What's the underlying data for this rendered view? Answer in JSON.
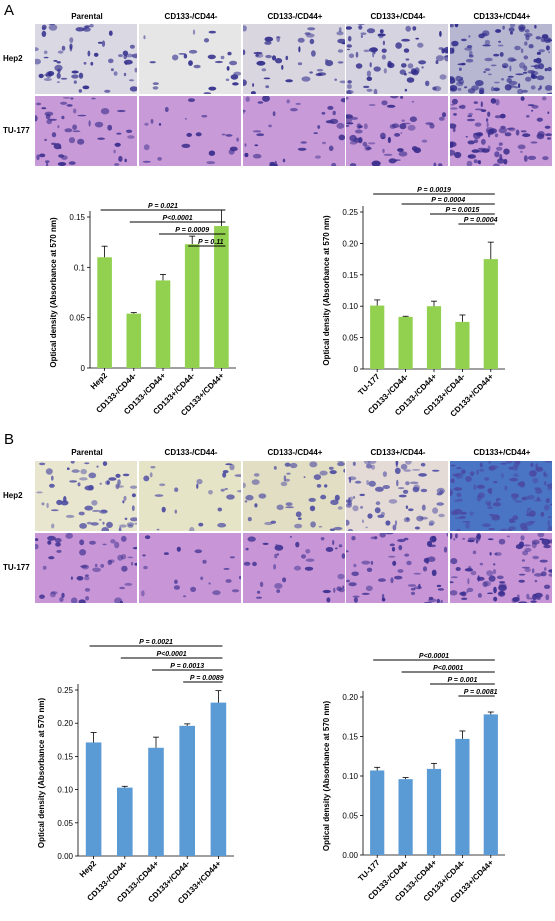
{
  "panels": [
    {
      "letter": "A",
      "columns": [
        "Parental",
        "CD133-/CD44-",
        "CD133-/CD44+",
        "CD133+/CD44-",
        "CD133+/CD44+"
      ],
      "rows": [
        "Hep2",
        "TU-177"
      ],
      "colors": {
        "hep2_bg": [
          "#dad8e3",
          "#e6e6e6",
          "#d9d6e0",
          "#d6d3e0",
          "#b8b7d2"
        ],
        "hep2_dot": "#2e2a8a",
        "tu_bg": "#c89ad8",
        "tu_dot": "#3a2d8c"
      }
    },
    {
      "letter": "B",
      "columns": [
        "Parental",
        "CD133-/CD44-",
        "CD133-/CD44+",
        "CD133+/CD44-",
        "CD133+/CD44+"
      ],
      "rows": [
        "Hep2",
        "TU-177"
      ],
      "colors": {
        "hep2_bg": [
          "#e9e6d0",
          "#e6e4c6",
          "#e2dec4",
          "#e4dad6",
          "#4a74c4"
        ],
        "hep2_dot": "#4b4aa2",
        "tu_bg": "#c896d6",
        "tu_dot": "#3b2f90"
      }
    }
  ],
  "chart_data": [
    {
      "type": "bar",
      "bar_color": "#92d050",
      "ylabel": "Optical density (Absorbance at 570 nm)",
      "categories": [
        "Hep2",
        "CD133-/CD44-",
        "CD133-/CD44+",
        "CD133+/CD44-",
        "CD133+/CD44+"
      ],
      "values": [
        0.11,
        0.054,
        0.087,
        0.123,
        0.141
      ],
      "errors": [
        0.011,
        0.001,
        0.006,
        0.008,
        0.016
      ],
      "ylim": [
        0,
        0.15
      ],
      "yticks": [
        "0",
        "0.05",
        "0.1",
        "0.15"
      ],
      "comparisons": [
        {
          "from": 0,
          "to": 4,
          "label": "P = 0.021"
        },
        {
          "from": 1,
          "to": 4,
          "label": "P<0.0001"
        },
        {
          "from": 2,
          "to": 4,
          "label": "P = 0.0009"
        },
        {
          "from": 3,
          "to": 4,
          "label": "P = 0.11"
        }
      ]
    },
    {
      "type": "bar",
      "bar_color": "#92d050",
      "ylabel": "Optical density (Absorbance at 570 nm)",
      "categories": [
        "TU-177",
        "CD133-/CD44-",
        "CD133-/CD44+",
        "CD133+/CD44-",
        "CD133+/CD44+"
      ],
      "values": [
        0.101,
        0.083,
        0.1,
        0.075,
        0.175
      ],
      "errors": [
        0.009,
        0.001,
        0.008,
        0.011,
        0.027
      ],
      "ylim": [
        0,
        0.25
      ],
      "yticks": [
        "0",
        "0.05",
        "0.10",
        "0.15",
        "0.20",
        "0.25"
      ],
      "comparisons": [
        {
          "from": 0,
          "to": 4,
          "label": "P = 0.0019"
        },
        {
          "from": 1,
          "to": 4,
          "label": "P = 0.0004"
        },
        {
          "from": 2,
          "to": 4,
          "label": "P = 0.0015"
        },
        {
          "from": 3,
          "to": 4,
          "label": "P = 0.0004"
        }
      ]
    },
    {
      "type": "bar",
      "bar_color": "#5b9bd5",
      "ylabel": "Optical density (Absorbance at 570 nm)",
      "categories": [
        "Hep2",
        "CD133-/CD44-",
        "CD133-/CD44+",
        "CD133+/CD44-",
        "CD133+/CD44+"
      ],
      "values": [
        0.171,
        0.103,
        0.163,
        0.196,
        0.231
      ],
      "errors": [
        0.015,
        0.002,
        0.016,
        0.003,
        0.018
      ],
      "ylim": [
        0,
        0.25
      ],
      "yticks": [
        "0.00",
        "0.05",
        "0.10",
        "0.15",
        "0.20",
        "0.25"
      ],
      "comparisons": [
        {
          "from": 0,
          "to": 4,
          "label": "P = 0.0021"
        },
        {
          "from": 1,
          "to": 4,
          "label": "P<0.0001"
        },
        {
          "from": 2,
          "to": 4,
          "label": "P = 0.0013"
        },
        {
          "from": 3,
          "to": 4,
          "label": "P = 0.0089"
        }
      ]
    },
    {
      "type": "bar",
      "bar_color": "#5b9bd5",
      "ylabel": "Optical density (Absorbance at 570 nm)",
      "categories": [
        "TU-177",
        "CD133-/CD44-",
        "CD133-/CD44+",
        "CD133+/CD44-",
        "CD133+/CD44+"
      ],
      "values": [
        0.107,
        0.096,
        0.109,
        0.147,
        0.178
      ],
      "errors": [
        0.004,
        0.002,
        0.007,
        0.01,
        0.003
      ],
      "ylim": [
        0,
        0.2
      ],
      "yticks": [
        "0.00",
        "0.05",
        "0.10",
        "0.15",
        "0.20"
      ],
      "comparisons": [
        {
          "from": 0,
          "to": 4,
          "label": "P<0.0001"
        },
        {
          "from": 1,
          "to": 4,
          "label": "P<0.0001"
        },
        {
          "from": 2,
          "to": 4,
          "label": "P = 0.001"
        },
        {
          "from": 3,
          "to": 4,
          "label": "P = 0.0081"
        }
      ]
    }
  ]
}
